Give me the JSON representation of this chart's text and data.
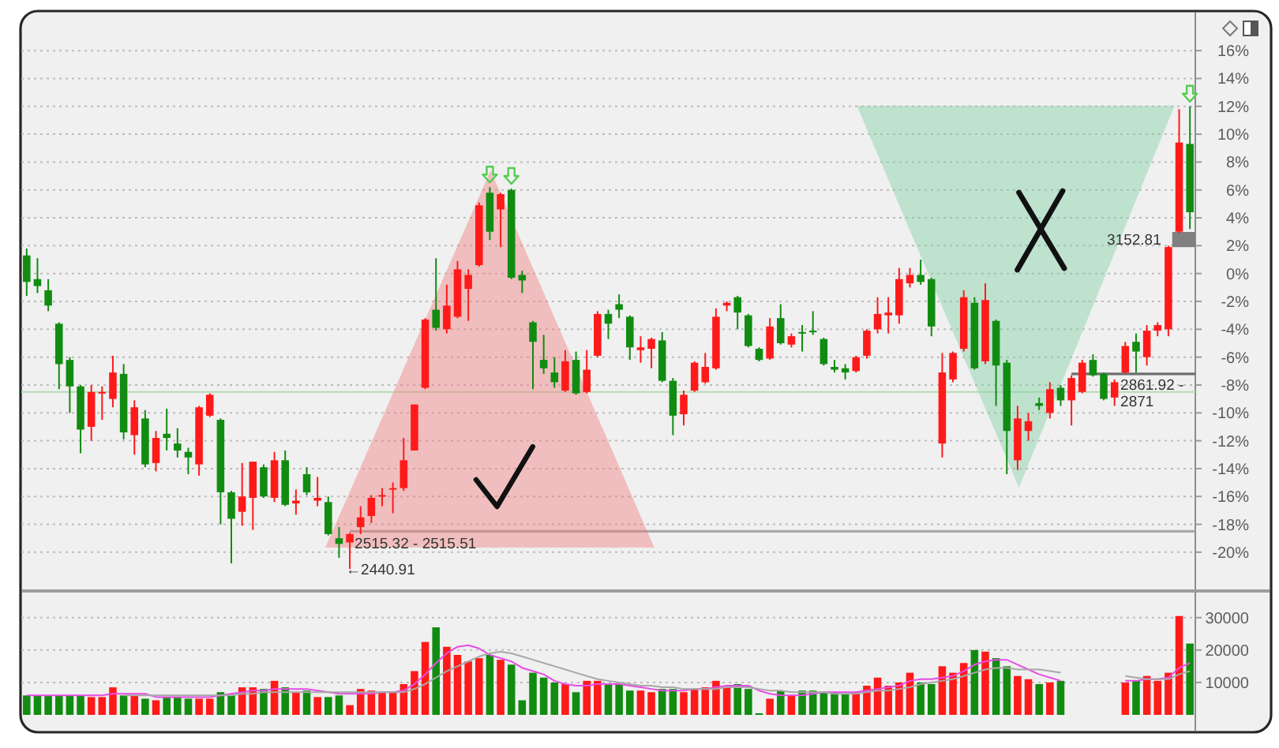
{
  "chart_data": [
    {
      "type": "candlestick",
      "categories": [
        null,
        null,
        null,
        null,
        null,
        null,
        null,
        null,
        null,
        null,
        null,
        null,
        null,
        null,
        null,
        null,
        null,
        null,
        null,
        null,
        null,
        null,
        null,
        null,
        null,
        null,
        null,
        null,
        null,
        null,
        null,
        null,
        null,
        null,
        null,
        null,
        null,
        null,
        null,
        null,
        null,
        null,
        null,
        null,
        null,
        null,
        null,
        null,
        null,
        null,
        null,
        null,
        null,
        null,
        null,
        null,
        null,
        null,
        null,
        null,
        null,
        null,
        null,
        null,
        null,
        null,
        null,
        null,
        null,
        null,
        null,
        null,
        null,
        null,
        null,
        null,
        null,
        null,
        null,
        null,
        null,
        null,
        null,
        null,
        null,
        null,
        null,
        null,
        null,
        null,
        null,
        null,
        null,
        null,
        null,
        null,
        null,
        null,
        null,
        null,
        null,
        null,
        null,
        null,
        null,
        null,
        null,
        null,
        null
      ],
      "ohlc": [
        [
          1.3,
          1.8,
          -1.6,
          -0.6
        ],
        [
          -0.4,
          1.1,
          -1.4,
          -0.9
        ],
        [
          -1.2,
          -0.4,
          -2.7,
          -2.3
        ],
        [
          -3.6,
          -3.5,
          -8.3,
          -6.5
        ],
        [
          -6.2,
          -6.0,
          -10.0,
          -8.1
        ],
        [
          -8.1,
          -8.0,
          -12.9,
          -11.2
        ],
        [
          -11.0,
          -8.0,
          -12.0,
          -8.5
        ],
        [
          -8.6,
          -8.1,
          -10.5,
          -8.5
        ],
        [
          -9.0,
          -5.9,
          -9.6,
          -7.1
        ],
        [
          -7.2,
          -6.5,
          -11.9,
          -11.4
        ],
        [
          -11.6,
          -9.1,
          -13.0,
          -9.6
        ],
        [
          -10.4,
          -9.8,
          -13.9,
          -13.7
        ],
        [
          -13.6,
          -11.3,
          -14.2,
          -11.8
        ],
        [
          -11.5,
          -9.7,
          -12.7,
          -11.8
        ],
        [
          -12.2,
          -11.1,
          -13.2,
          -12.7
        ],
        [
          -12.8,
          -12.5,
          -14.4,
          -13.2
        ],
        [
          -13.7,
          -9.5,
          -14.5,
          -9.6
        ],
        [
          -10.2,
          -8.6,
          -10.3,
          -8.7
        ],
        [
          -10.5,
          -10.4,
          -18.0,
          -15.7
        ],
        [
          -15.7,
          -15.6,
          -20.8,
          -17.6
        ],
        [
          -17.1,
          -13.6,
          -18.1,
          -16.0
        ],
        [
          -16.1,
          -13.5,
          -18.4,
          -13.5
        ],
        [
          -13.9,
          -13.7,
          -16.1,
          -16.0
        ],
        [
          -16.1,
          -12.8,
          -16.4,
          -13.4
        ],
        [
          -13.4,
          -12.7,
          -16.7,
          -16.6
        ],
        [
          -16.5,
          -15.5,
          -17.3,
          -16.3
        ],
        [
          -14.4,
          -13.9,
          -15.9,
          -15.7
        ],
        [
          -16.3,
          -14.6,
          -16.7,
          -16.1
        ],
        [
          -16.4,
          -16.0,
          -18.8,
          -18.7
        ],
        [
          -19.0,
          -18.2,
          -20.4,
          -19.4
        ],
        [
          -19.3,
          -18.6,
          -21.2,
          -18.7
        ],
        [
          -18.2,
          -16.7,
          -18.7,
          -17.5
        ],
        [
          -17.4,
          -15.9,
          -17.9,
          -16.1
        ],
        [
          -16.0,
          -15.4,
          -16.7,
          -15.9
        ],
        [
          -15.5,
          -15.0,
          -17.2,
          -15.4
        ],
        [
          -15.4,
          -11.8,
          -15.6,
          -13.4
        ],
        [
          -12.7,
          -9.4,
          -12.7,
          -9.4
        ],
        [
          -8.2,
          -3.2,
          -8.3,
          -3.3
        ],
        [
          -2.6,
          1.1,
          -4.1,
          -3.9
        ],
        [
          -4.0,
          -0.8,
          -4.3,
          -2.3
        ],
        [
          -3.1,
          0.9,
          -3.2,
          0.3
        ],
        [
          -1.1,
          0.3,
          -3.4,
          -0.1
        ],
        [
          0.6,
          5.1,
          0.5,
          4.9
        ],
        [
          5.8,
          6.2,
          2.4,
          3.0
        ],
        [
          4.6,
          5.8,
          1.9,
          5.7
        ],
        [
          6.0,
          6.1,
          -0.4,
          -0.3
        ],
        [
          -0.1,
          0.2,
          -1.4,
          -0.5
        ],
        [
          -3.5,
          -3.4,
          -8.3,
          -4.9
        ],
        [
          -6.2,
          -4.4,
          -7.2,
          -6.8
        ],
        [
          -7.1,
          -6.0,
          -8.2,
          -7.8
        ],
        [
          -8.4,
          -5.5,
          -8.5,
          -6.3
        ],
        [
          -6.2,
          -5.6,
          -8.7,
          -8.6
        ],
        [
          -8.5,
          -5.5,
          -8.6,
          -6.9
        ],
        [
          -5.9,
          -2.7,
          -6.0,
          -2.9
        ],
        [
          -2.9,
          -2.6,
          -4.7,
          -3.6
        ],
        [
          -2.2,
          -1.5,
          -3.2,
          -2.6
        ],
        [
          -3.1,
          -3.0,
          -6.2,
          -5.3
        ],
        [
          -5.5,
          -4.5,
          -6.4,
          -5.3
        ],
        [
          -5.4,
          -4.6,
          -6.8,
          -4.7
        ],
        [
          -4.8,
          -4.2,
          -7.8,
          -7.7
        ],
        [
          -7.7,
          -7.5,
          -11.6,
          -10.2
        ],
        [
          -10.1,
          -8.4,
          -10.9,
          -8.7
        ],
        [
          -8.4,
          -6.3,
          -8.5,
          -6.4
        ],
        [
          -7.8,
          -5.7,
          -7.9,
          -6.7
        ],
        [
          -6.8,
          -2.5,
          -6.9,
          -3.1
        ],
        [
          -2.3,
          -2.0,
          -2.7,
          -2.1
        ],
        [
          -1.7,
          -1.6,
          -4.0,
          -2.8
        ],
        [
          -3.0,
          -2.9,
          -5.3,
          -5.2
        ],
        [
          -5.4,
          -5.3,
          -6.3,
          -6.2
        ],
        [
          -6.1,
          -3.2,
          -6.2,
          -3.8
        ],
        [
          -3.2,
          -2.2,
          -5.1,
          -5.0
        ],
        [
          -5.1,
          -4.3,
          -5.3,
          -4.5
        ],
        [
          -4.2,
          -3.7,
          -5.6,
          -4.3
        ],
        [
          -4.1,
          -2.7,
          -4.4,
          -4.2
        ],
        [
          -4.7,
          -4.6,
          -6.6,
          -6.5
        ],
        [
          -6.7,
          -6.2,
          -7.1,
          -6.9
        ],
        [
          -6.8,
          -6.5,
          -7.6,
          -7.1
        ],
        [
          -7.0,
          -5.9,
          -7.1,
          -6.0
        ],
        [
          -5.9,
          -4.0,
          -6.1,
          -4.1
        ],
        [
          -4.0,
          -1.7,
          -4.3,
          -2.9
        ],
        [
          -3.0,
          -1.7,
          -4.3,
          -2.8
        ],
        [
          -3.0,
          0.4,
          -3.6,
          -0.4
        ],
        [
          -0.7,
          0.4,
          -1.0,
          -0.1
        ],
        [
          -0.1,
          1.0,
          -0.8,
          -0.6
        ],
        [
          -0.4,
          -0.3,
          -4.5,
          -3.8
        ],
        [
          -12.2,
          -5.7,
          -13.2,
          -7.1
        ],
        [
          -7.6,
          -5.6,
          -7.8,
          -5.7
        ],
        [
          -5.4,
          -1.2,
          -5.6,
          -1.7
        ],
        [
          -2.1,
          -1.7,
          -6.9,
          -6.8
        ],
        [
          -6.3,
          -0.7,
          -6.5,
          -1.9
        ],
        [
          -3.4,
          -3.3,
          -9.5,
          -6.6
        ],
        [
          -6.4,
          -6.2,
          -14.4,
          -11.3
        ],
        [
          -13.4,
          -9.5,
          -14.1,
          -10.4
        ],
        [
          -11.3,
          -10.0,
          -12.0,
          -10.6
        ],
        [
          -9.3,
          -8.9,
          -9.8,
          -9.5
        ],
        [
          -10.0,
          -7.8,
          -10.4,
          -8.3
        ],
        [
          -8.2,
          -8.0,
          -9.5,
          -9.1
        ],
        [
          -9.1,
          -7.3,
          -10.9,
          -7.5
        ],
        [
          -8.5,
          -6.2,
          -8.6,
          -6.4
        ],
        [
          -6.2,
          -5.8,
          -7.4,
          -7.3
        ],
        [
          -7.2,
          -7.1,
          -9.1,
          -9.0
        ],
        [
          -8.9,
          -7.6,
          -9.5,
          -7.8
        ],
        [
          -7.1,
          -4.9,
          -7.2,
          -5.2
        ],
        [
          -4.9,
          -4.3,
          -7.1,
          -5.6
        ],
        [
          -6.0,
          -3.7,
          -6.6,
          -4.1
        ],
        [
          -4.1,
          -3.5,
          -4.5,
          -3.7
        ],
        [
          -4.0,
          2.0,
          -4.5,
          1.9
        ],
        [
          3.0,
          11.8,
          2.9,
          9.4
        ],
        [
          9.3,
          12.0,
          3.2,
          4.4
        ]
      ],
      "colors": [
        "#118c11",
        "#118c11",
        "#118c11",
        "#118c11",
        "#118c11",
        "#118c11",
        "#ff1a1a",
        "#ff1a1a",
        "#ff1a1a",
        "#118c11",
        "#ff1a1a",
        "#118c11",
        "#ff1a1a",
        "#118c11",
        "#118c11",
        "#118c11",
        "#ff1a1a",
        "#ff1a1a",
        "#118c11",
        "#118c11",
        "#ff1a1a",
        "#ff1a1a",
        "#118c11",
        "#ff1a1a",
        "#118c11",
        "#ff1a1a",
        "#118c11",
        "#ff1a1a",
        "#118c11",
        "#118c11",
        "#ff1a1a",
        "#ff1a1a",
        "#ff1a1a",
        "#ff1a1a",
        "#ff1a1a",
        "#ff1a1a",
        "#ff1a1a",
        "#ff1a1a",
        "#118c11",
        "#ff1a1a",
        "#ff1a1a",
        "#ff1a1a",
        "#ff1a1a",
        "#118c11",
        "#ff1a1a",
        "#118c11",
        "#118c11",
        "#118c11",
        "#118c11",
        "#118c11",
        "#ff1a1a",
        "#118c11",
        "#ff1a1a",
        "#ff1a1a",
        "#118c11",
        "#118c11",
        "#118c11",
        "#ff1a1a",
        "#ff1a1a",
        "#118c11",
        "#118c11",
        "#ff1a1a",
        "#ff1a1a",
        "#ff1a1a",
        "#ff1a1a",
        "#ff1a1a",
        "#118c11",
        "#118c11",
        "#118c11",
        "#ff1a1a",
        "#118c11",
        "#ff1a1a",
        "#118c11",
        "#118c11",
        "#118c11",
        "#118c11",
        "#118c11",
        "#ff1a1a",
        "#ff1a1a",
        "#ff1a1a",
        "#ff1a1a",
        "#ff1a1a",
        "#ff1a1a",
        "#118c11",
        "#118c11",
        "#ff1a1a",
        "#ff1a1a",
        "#ff1a1a",
        "#118c11",
        "#ff1a1a",
        "#118c11",
        "#118c11",
        "#ff1a1a",
        "#ff1a1a",
        "#118c11",
        "#ff1a1a",
        "#118c11",
        "#ff1a1a",
        "#ff1a1a",
        "#118c11",
        "#118c11",
        "#ff1a1a",
        "#ff1a1a",
        "#118c11",
        "#ff1a1a",
        "#ff1a1a",
        "#ff1a1a",
        "#ff1a1a",
        "#118c11"
      ],
      "ylim": [
        -22.5,
        18.5
      ],
      "yticks": [
        {
          "value": 16,
          "label": "16%"
        },
        {
          "value": 14,
          "label": "14%"
        },
        {
          "value": 12,
          "label": "12%"
        },
        {
          "value": 10,
          "label": "10%"
        },
        {
          "value": 8,
          "label": "8%"
        },
        {
          "value": 6,
          "label": "6%"
        },
        {
          "value": 4,
          "label": "4%"
        },
        {
          "value": 2,
          "label": "2%"
        },
        {
          "value": 0,
          "label": "0%"
        },
        {
          "value": -2,
          "label": "-2%"
        },
        {
          "value": -4,
          "label": "-4%"
        },
        {
          "value": -6,
          "label": "-6%"
        },
        {
          "value": -8,
          "label": "-8%"
        },
        {
          "value": -10,
          "label": "-10%"
        },
        {
          "value": -12,
          "label": "-12%"
        },
        {
          "value": -14,
          "label": "-14%"
        },
        {
          "value": -16,
          "label": "-16%"
        },
        {
          "value": -18,
          "label": "-18%"
        },
        {
          "value": -20,
          "label": "-20%"
        }
      ],
      "grid": "y",
      "ref_lines": [
        {
          "axis": "y",
          "value": -8.5,
          "color": "#b5dbb5"
        },
        {
          "axis": "y",
          "value": -18.5,
          "color": "#a8a8a8"
        },
        {
          "axis": "y",
          "value": -7.2,
          "color": "#6e6e6e"
        }
      ],
      "annotations": [
        "2515.32 - 2515.51",
        "2861.92 - 2871",
        "3152.81",
        "←2440.91"
      ]
    },
    {
      "type": "bar",
      "categories": [
        null,
        null,
        null,
        null,
        null,
        null,
        null,
        null,
        null,
        null,
        null,
        null,
        null,
        null,
        null,
        null,
        null,
        null,
        null,
        null,
        null,
        null,
        null,
        null,
        null,
        null,
        null,
        null,
        null,
        null,
        null,
        null,
        null,
        null,
        null,
        null,
        null,
        null,
        null,
        null,
        null,
        null,
        null,
        null,
        null,
        null,
        null,
        null,
        null,
        null,
        null,
        null,
        null,
        null,
        null,
        null,
        null,
        null,
        null,
        null,
        null,
        null,
        null,
        null,
        null,
        null,
        null,
        null,
        null,
        null,
        null,
        null,
        null,
        null,
        null,
        null,
        null,
        null,
        null,
        null,
        null,
        null,
        null,
        null,
        null,
        null,
        null,
        null,
        null,
        null,
        null,
        null,
        null,
        null,
        null,
        null,
        null,
        null,
        null,
        null,
        null,
        null,
        null,
        null,
        null,
        null,
        null,
        null,
        null
      ],
      "series": [
        {
          "type": "bar",
          "colors": [
            "#118c11",
            "#118c11",
            "#118c11",
            "#118c11",
            "#118c11",
            "#118c11",
            "#ff1a1a",
            "#ff1a1a",
            "#ff1a1a",
            "#118c11",
            "#ff1a1a",
            "#118c11",
            "#ff1a1a",
            "#118c11",
            "#118c11",
            "#118c11",
            "#ff1a1a",
            "#ff1a1a",
            "#118c11",
            "#118c11",
            "#ff1a1a",
            "#ff1a1a",
            "#118c11",
            "#ff1a1a",
            "#118c11",
            "#ff1a1a",
            "#118c11",
            "#ff1a1a",
            "#118c11",
            "#118c11",
            "#ff1a1a",
            "#ff1a1a",
            "#ff1a1a",
            "#ff1a1a",
            "#ff1a1a",
            "#ff1a1a",
            "#ff1a1a",
            "#ff1a1a",
            "#118c11",
            "#ff1a1a",
            "#ff1a1a",
            "#ff1a1a",
            "#ff1a1a",
            "#118c11",
            "#ff1a1a",
            "#118c11",
            "#118c11",
            "#118c11",
            "#118c11",
            "#118c11",
            "#ff1a1a",
            "#118c11",
            "#ff1a1a",
            "#ff1a1a",
            "#118c11",
            "#118c11",
            "#118c11",
            "#ff1a1a",
            "#ff1a1a",
            "#118c11",
            "#118c11",
            "#ff1a1a",
            "#ff1a1a",
            "#ff1a1a",
            "#ff1a1a",
            "#ff1a1a",
            "#118c11",
            "#118c11",
            "#118c11",
            "#ff1a1a",
            "#118c11",
            "#ff1a1a",
            "#118c11",
            "#118c11",
            "#118c11",
            "#118c11",
            "#118c11",
            "#ff1a1a",
            "#ff1a1a",
            "#ff1a1a",
            "#ff1a1a",
            "#ff1a1a",
            "#ff1a1a",
            "#118c11",
            "#118c11",
            "#ff1a1a",
            "#ff1a1a",
            "#ff1a1a",
            "#118c11",
            "#ff1a1a",
            "#118c11",
            "#118c11",
            "#ff1a1a",
            "#ff1a1a",
            "#118c11",
            "#ff1a1a",
            "#118c11",
            null,
            null,
            null,
            null,
            null,
            "#ff1a1a",
            "#118c11",
            "#ff1a1a",
            "#ff1a1a",
            "#ff1a1a",
            "#ff1a1a",
            "#118c11"
          ],
          "values": [
            6000,
            6000,
            6000,
            6000,
            6000,
            6000,
            5500,
            5500,
            8500,
            6000,
            6000,
            5000,
            4500,
            5500,
            5500,
            5000,
            5000,
            5000,
            7000,
            6000,
            8500,
            8500,
            8000,
            10500,
            8500,
            7000,
            7500,
            5500,
            5500,
            6000,
            3000,
            8000,
            7500,
            7000,
            7000,
            9500,
            13500,
            22500,
            27000,
            21000,
            18500,
            16500,
            17500,
            18500,
            17000,
            15500,
            4500,
            13000,
            11500,
            10000,
            9500,
            7000,
            10500,
            10500,
            9500,
            9500,
            7500,
            7500,
            7000,
            8000,
            8000,
            7000,
            8000,
            8500,
            10500,
            8500,
            9500,
            8000,
            500,
            5000,
            7500,
            6000,
            7500,
            7500,
            7000,
            7000,
            6500,
            7000,
            9000,
            11500,
            9000,
            10000,
            13000,
            10000,
            9500,
            15000,
            13000,
            16000,
            20000,
            19500,
            17500,
            15000,
            12000,
            11000,
            9500,
            10000,
            10500,
            null,
            null,
            null,
            null,
            null,
            10000,
            10500,
            12000,
            10500,
            13000,
            30500,
            22000
          ]
        },
        {
          "type": "line",
          "color": "#e64ce6",
          "values": [
            6000,
            6000,
            6000,
            6000,
            6000,
            6000,
            6000,
            6000,
            6500,
            6500,
            6500,
            6500,
            5500,
            5500,
            5500,
            5500,
            5500,
            5500,
            6000,
            6500,
            7000,
            7500,
            7500,
            8000,
            8000,
            8000,
            8000,
            7500,
            7000,
            6500,
            6500,
            6500,
            6500,
            7000,
            7000,
            7500,
            9500,
            12500,
            16000,
            19000,
            21000,
            21500,
            20500,
            18500,
            17500,
            16500,
            14500,
            13500,
            12500,
            10500,
            9500,
            9000,
            9000,
            9500,
            9500,
            9500,
            9000,
            8500,
            8000,
            7500,
            7500,
            7500,
            8000,
            8000,
            8500,
            9000,
            9000,
            9000,
            7500,
            6500,
            6000,
            6000,
            6000,
            6500,
            7000,
            7000,
            7000,
            7000,
            7500,
            8000,
            8500,
            9000,
            10500,
            11000,
            11000,
            11500,
            12000,
            13500,
            15500,
            16500,
            17000,
            17000,
            15500,
            14000,
            12500,
            11500,
            10500,
            null,
            null,
            null,
            null,
            null,
            10500,
            10500,
            11000,
            11000,
            11500,
            14500,
            16000
          ]
        },
        {
          "type": "line",
          "color": "#a8a8a8",
          "values": [
            null,
            null,
            null,
            null,
            null,
            null,
            null,
            null,
            null,
            6000,
            6000,
            6000,
            6000,
            6000,
            6000,
            6000,
            6000,
            6000,
            6000,
            6000,
            6500,
            6500,
            7000,
            7000,
            7000,
            7000,
            7000,
            7000,
            7000,
            7000,
            7000,
            7000,
            7000,
            7000,
            7000,
            7000,
            8000,
            9500,
            11500,
            13500,
            15000,
            16500,
            18000,
            19000,
            19500,
            19000,
            18000,
            17000,
            16000,
            15000,
            14000,
            13000,
            12000,
            11000,
            10500,
            10000,
            9500,
            9000,
            9000,
            8500,
            8500,
            8000,
            8000,
            8000,
            8000,
            8500,
            8500,
            8500,
            8000,
            7500,
            7500,
            7000,
            7000,
            7000,
            7000,
            6500,
            6500,
            6500,
            7000,
            7500,
            7500,
            8000,
            8500,
            9500,
            10000,
            10500,
            11000,
            12000,
            13000,
            14000,
            14500,
            14500,
            14000,
            14000,
            14000,
            13500,
            13000,
            null,
            null,
            null,
            null,
            null,
            12000,
            11500,
            11000,
            11000,
            11000,
            12500,
            13500
          ]
        }
      ],
      "ylim": [
        0,
        37000
      ],
      "yticks": [
        10000,
        20000,
        30000
      ],
      "grid": "y"
    }
  ]
}
